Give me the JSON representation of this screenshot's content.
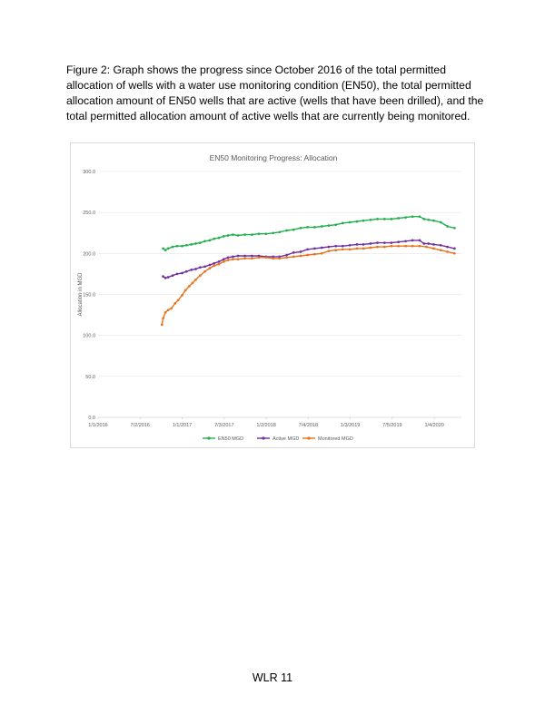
{
  "document": {
    "caption": "Figure 2: Graph shows the progress since October 2016 of the total permitted allocation of wells with a water use monitoring condition (EN50), the total permitted allocation amount of EN50 wells that are active (wells that have been drilled), and the total permitted allocation amount of active wells that are currently being monitored.",
    "footer": "WLR 11"
  },
  "chart_data": {
    "type": "line",
    "title": "EN50 Monitoring Progress: Allocation",
    "xlabel": "",
    "ylabel": "Allocation in MGD",
    "x_ticks": [
      "1/1/2016",
      "7/2/2016",
      "1/1/2017",
      "7/3/2017",
      "1/2/2018",
      "7/4/2018",
      "1/3/2019",
      "7/5/2019",
      "1/4/2020"
    ],
    "y_ticks": [
      "0.0",
      "50.0",
      "100.0",
      "150.0",
      "200.0",
      "250.0",
      "300.0"
    ],
    "ylim": [
      0,
      300
    ],
    "xlim": [
      "2016-01-01",
      "2020-05-01"
    ],
    "grid": true,
    "legend_position": "bottom",
    "series": [
      {
        "name": "EN50 MGD",
        "color": "#21b04b",
        "x": [
          "2016-10-10",
          "2016-10-20",
          "2016-11-01",
          "2016-11-20",
          "2016-12-10",
          "2017-01-01",
          "2017-01-20",
          "2017-02-10",
          "2017-03-01",
          "2017-03-20",
          "2017-04-10",
          "2017-05-01",
          "2017-05-20",
          "2017-06-10",
          "2017-07-01",
          "2017-07-20",
          "2017-08-10",
          "2017-09-01",
          "2017-10-01",
          "2017-11-01",
          "2017-12-01",
          "2018-01-01",
          "2018-02-01",
          "2018-03-01",
          "2018-04-01",
          "2018-05-01",
          "2018-06-01",
          "2018-07-01",
          "2018-08-01",
          "2018-09-01",
          "2018-10-01",
          "2018-11-01",
          "2018-12-01",
          "2019-01-01",
          "2019-02-01",
          "2019-03-01",
          "2019-04-01",
          "2019-05-01",
          "2019-06-01",
          "2019-07-01",
          "2019-08-01",
          "2019-09-01",
          "2019-10-01",
          "2019-11-01",
          "2019-11-20",
          "2019-12-10",
          "2020-01-01",
          "2020-02-01",
          "2020-03-01",
          "2020-04-01"
        ],
        "values": [
          206,
          204,
          206,
          208,
          209,
          209,
          210,
          211,
          212,
          213,
          215,
          216,
          218,
          219,
          221,
          222,
          223,
          222,
          223,
          223,
          224,
          224,
          225,
          226,
          228,
          229,
          231,
          232,
          232,
          233,
          234,
          235,
          237,
          238,
          239,
          240,
          241,
          242,
          242,
          242,
          243,
          244,
          245,
          245,
          242,
          241,
          240,
          238,
          233,
          231
        ]
      },
      {
        "name": "Active MGD",
        "color": "#7030a0",
        "x": [
          "2016-10-10",
          "2016-10-20",
          "2016-11-01",
          "2016-11-20",
          "2016-12-10",
          "2017-01-01",
          "2017-01-20",
          "2017-02-10",
          "2017-03-01",
          "2017-03-20",
          "2017-04-10",
          "2017-05-01",
          "2017-05-20",
          "2017-06-10",
          "2017-07-01",
          "2017-07-20",
          "2017-08-10",
          "2017-09-01",
          "2017-10-01",
          "2017-11-01",
          "2017-12-01",
          "2018-01-01",
          "2018-02-01",
          "2018-03-01",
          "2018-04-01",
          "2018-05-01",
          "2018-06-01",
          "2018-07-01",
          "2018-08-01",
          "2018-09-01",
          "2018-10-01",
          "2018-11-01",
          "2018-12-01",
          "2019-01-01",
          "2019-02-01",
          "2019-03-01",
          "2019-04-01",
          "2019-05-01",
          "2019-06-01",
          "2019-07-01",
          "2019-08-01",
          "2019-09-01",
          "2019-10-01",
          "2019-11-01",
          "2019-11-20",
          "2019-12-10",
          "2020-01-01",
          "2020-02-01",
          "2020-03-01",
          "2020-04-01"
        ],
        "values": [
          172,
          170,
          171,
          173,
          175,
          176,
          178,
          180,
          181,
          183,
          184,
          186,
          188,
          190,
          193,
          195,
          196,
          197,
          197,
          197,
          197,
          196,
          196,
          196,
          198,
          201,
          202,
          205,
          206,
          207,
          208,
          209,
          209,
          210,
          211,
          211,
          212,
          213,
          213,
          213,
          214,
          215,
          216,
          216,
          212,
          212,
          211,
          210,
          208,
          206
        ]
      },
      {
        "name": "Monitored MGD",
        "color": "#e8731a",
        "x": [
          "2016-10-05",
          "2016-10-10",
          "2016-10-20",
          "2016-11-01",
          "2016-11-15",
          "2016-12-01",
          "2016-12-15",
          "2017-01-01",
          "2017-01-15",
          "2017-02-01",
          "2017-02-15",
          "2017-03-01",
          "2017-03-20",
          "2017-04-10",
          "2017-05-01",
          "2017-05-20",
          "2017-06-10",
          "2017-07-01",
          "2017-07-20",
          "2017-08-10",
          "2017-09-01",
          "2017-10-01",
          "2017-11-01",
          "2017-12-01",
          "2018-01-01",
          "2018-02-01",
          "2018-03-01",
          "2018-04-01",
          "2018-05-01",
          "2018-06-01",
          "2018-07-01",
          "2018-08-01",
          "2018-09-01",
          "2018-10-01",
          "2018-11-01",
          "2018-12-01",
          "2019-01-01",
          "2019-02-01",
          "2019-03-01",
          "2019-04-01",
          "2019-05-01",
          "2019-06-01",
          "2019-07-01",
          "2019-08-01",
          "2019-09-01",
          "2019-10-01",
          "2019-11-01",
          "2019-12-01",
          "2020-01-01",
          "2020-02-01",
          "2020-03-01",
          "2020-04-01"
        ],
        "values": [
          113,
          121,
          128,
          131,
          133,
          139,
          143,
          149,
          155,
          160,
          164,
          168,
          173,
          178,
          182,
          185,
          187,
          190,
          192,
          193,
          193,
          194,
          194,
          195,
          195,
          194,
          194,
          195,
          196,
          197,
          198,
          199,
          200,
          203,
          204,
          205,
          205,
          206,
          206,
          207,
          208,
          208,
          209,
          209,
          209,
          209,
          209,
          208,
          206,
          204,
          202,
          200
        ]
      }
    ]
  }
}
